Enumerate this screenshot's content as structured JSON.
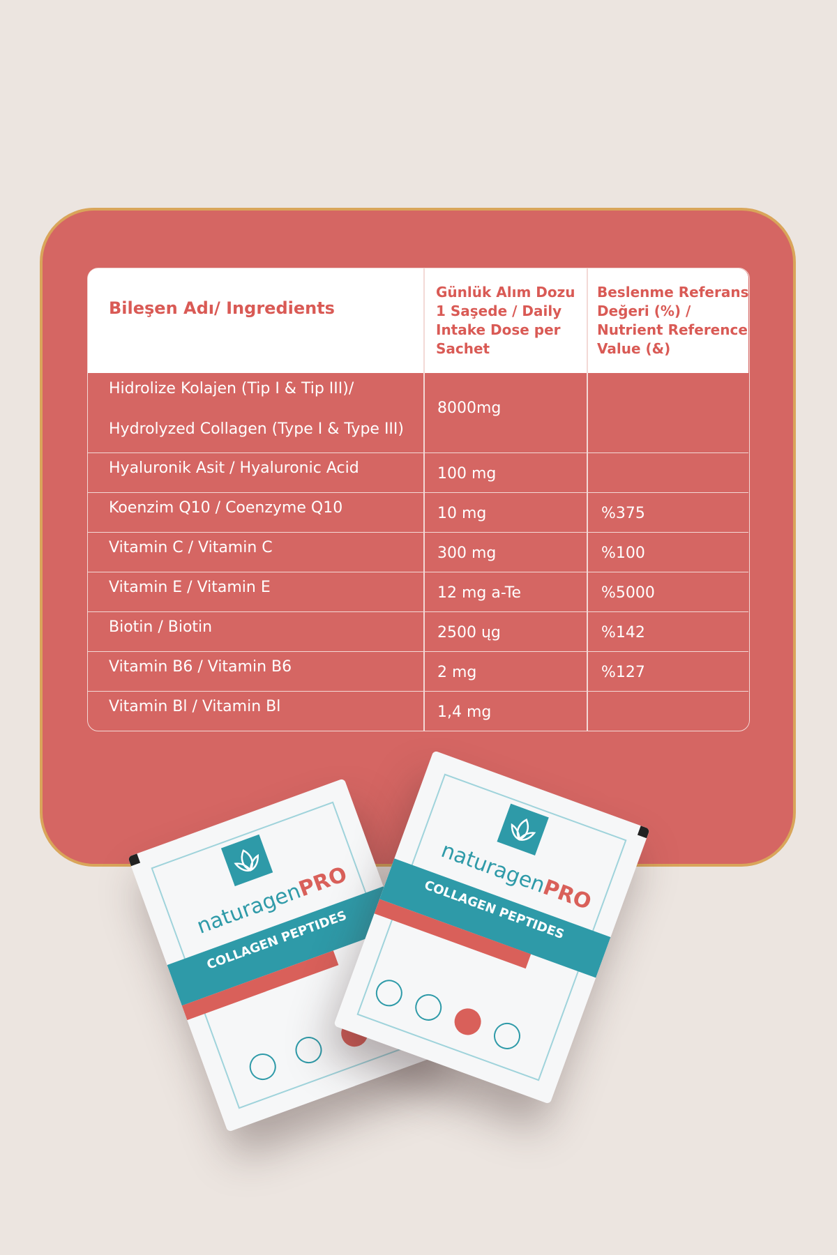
{
  "table": {
    "headers": {
      "ingredient": "Bileşen Adı/ Ingredients",
      "dose": "Günlük Alım Dozu 1 Saşede / Daily Intake Dose per Sachet",
      "nrv": "Beslenme Referans Değeri (%) / Nutrient Reference Value (&)"
    },
    "rows": [
      {
        "ingredient_line1": "Hidrolize Kolajen (Tip I & Tip III)/",
        "ingredient_line2": "Hydrolyzed Collagen (Type I & Type  III)",
        "dose": "8000mg",
        "nrv": ""
      },
      {
        "ingredient": "Hyaluronik Asit / Hyaluronic Acid",
        "dose": "100 mg",
        "nrv": ""
      },
      {
        "ingredient": "Koenzim Q10 / Coenzyme Q10",
        "dose": "10 mg",
        "nrv": "%375"
      },
      {
        "ingredient": "Vitamin C / Vitamin C",
        "dose": "300 mg",
        "nrv": "%100"
      },
      {
        "ingredient": "Vitamin E / Vitamin E",
        "dose": "12 mg a-Te",
        "nrv": "%5000"
      },
      {
        "ingredient": "Biotin / Biotin",
        "dose": "2500 ųg",
        "nrv": "%142"
      },
      {
        "ingredient": "Vitamin B6 / Vitamin B6",
        "dose": "2 mg",
        "nrv": "%127"
      },
      {
        "ingredient": "Vitamin Bl / Vitamin Bl",
        "dose": "1,4 mg",
        "nrv": ""
      }
    ]
  },
  "product": {
    "brand_main": "naturagen",
    "brand_accent": "PRO",
    "name": "COLLAGEN PEPTIDES"
  },
  "colors": {
    "card": "#d56663",
    "border": "#d9a55a",
    "teal": "#2e9aa8",
    "red": "#d9605a"
  }
}
